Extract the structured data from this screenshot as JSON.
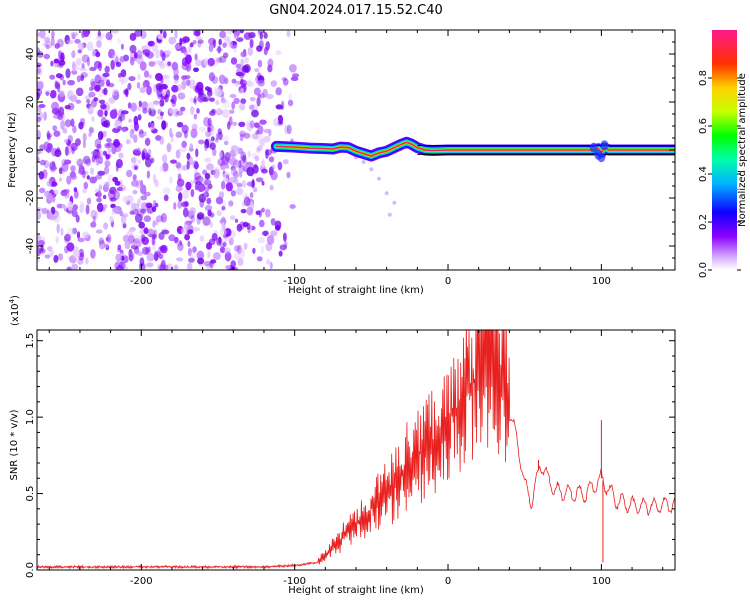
{
  "title": "GN04.2024.017.15.52.C40",
  "chart_data": [
    {
      "type": "heatmap",
      "xlabel": "Height of straight line (km)",
      "ylabel": "Frequency (Hz)",
      "xlim": [
        -268,
        148
      ],
      "ylim": [
        -50,
        50
      ],
      "xticks": [
        -200,
        -100,
        0,
        100
      ],
      "xtick_labels": [
        "-200",
        "-100",
        "0",
        "100"
      ],
      "yticks": [
        40,
        20,
        0,
        -20,
        -40
      ],
      "ytick_labels": [
        "40",
        "20",
        "0",
        "-20",
        "-40"
      ],
      "colorbar": {
        "label": "Normalized spectral amplitude",
        "range": [
          0,
          1
        ],
        "ticks": [
          0.0,
          0.2,
          0.4,
          0.6,
          0.8
        ],
        "tick_labels": [
          "0.0",
          "0.2",
          "0.4",
          "0.6",
          "0.8"
        ],
        "colors": [
          "#ffffff",
          "#8c00ff",
          "#0000ff",
          "#00c8ff",
          "#00ff00",
          "#ffff00",
          "#ff8000",
          "#ff0000",
          "#ff1493"
        ]
      },
      "noise_region_x": [
        -268,
        -95
      ],
      "ridge": {
        "x": [
          -112,
          -100,
          -90,
          -80,
          -75,
          -70,
          -65,
          -60,
          -55,
          -50,
          -45,
          -40,
          -35,
          -30,
          -27,
          -24,
          -20,
          -15,
          -10,
          0,
          20,
          40,
          60,
          80,
          90,
          95,
          98,
          100,
          102,
          105,
          110,
          120,
          130,
          140,
          148
        ],
        "freq": [
          1.5,
          1.2,
          0.8,
          0.6,
          0.4,
          1.2,
          1.0,
          -0.5,
          -1.5,
          -2.5,
          -1.2,
          -0.5,
          1.0,
          2.5,
          3.2,
          2.5,
          1.0,
          0.0,
          -0.2,
          0.0,
          0.0,
          0.0,
          0.0,
          0.0,
          0.0,
          0.0,
          0.5,
          -1.0,
          0.8,
          0.0,
          0.0,
          0.0,
          0.0,
          0.0,
          0.0
        ]
      },
      "grid": false
    },
    {
      "type": "line",
      "xlabel": "Height of straight line (km)",
      "ylabel": "SNR (10 * v/v)",
      "y_scale_label": "(x10",
      "y_scale_exp": "4",
      "y_scale_close": ")",
      "xlim": [
        -268,
        148
      ],
      "ylim": [
        0,
        1.57
      ],
      "xticks": [
        -200,
        -100,
        0,
        100
      ],
      "xtick_labels": [
        "-200",
        "-100",
        "0",
        "100"
      ],
      "yticks": [
        0.0,
        0.5,
        1.0,
        1.5
      ],
      "ytick_labels": [
        "0.0",
        "0.5",
        "1.0",
        "1.5"
      ],
      "series": [
        {
          "color": "#e8201e",
          "x": [
            -268,
            -200,
            -120,
            -100,
            -85,
            -75,
            -65,
            -55,
            -45,
            -35,
            -25,
            -15,
            -5,
            5,
            15,
            22,
            25,
            30,
            35,
            40,
            45,
            50,
            55,
            60,
            65,
            70,
            80,
            90,
            100,
            110,
            120,
            130,
            140,
            148
          ],
          "y": [
            0.02,
            0.02,
            0.02,
            0.03,
            0.05,
            0.15,
            0.25,
            0.35,
            0.45,
            0.55,
            0.7,
            0.8,
            0.9,
            1.05,
            1.2,
            1.35,
            1.45,
            1.38,
            1.25,
            1.05,
            0.85,
            0.55,
            0.45,
            0.7,
            0.6,
            0.52,
            0.5,
            0.5,
            0.6,
            0.45,
            0.42,
            0.42,
            0.42,
            0.43
          ]
        }
      ],
      "spikes": [
        {
          "x": 100,
          "y": 0.98
        },
        {
          "x": 101,
          "y": 0.05
        },
        {
          "x": 59,
          "y": 0.72
        }
      ],
      "grid": false
    }
  ]
}
